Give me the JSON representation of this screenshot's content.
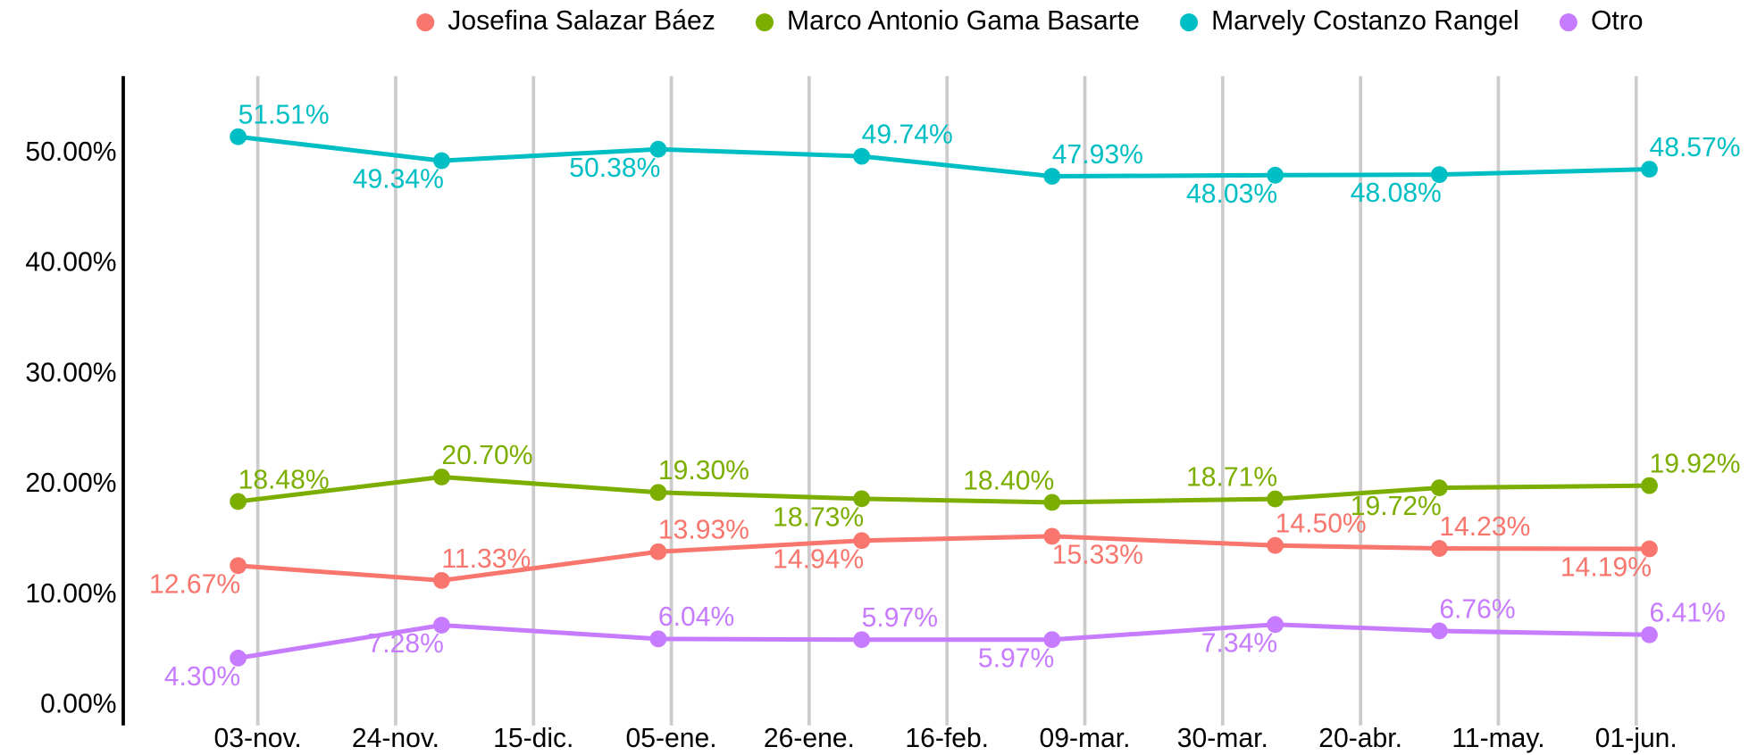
{
  "chart_data": {
    "type": "line",
    "x": [
      -3,
      28,
      61,
      92,
      121,
      155,
      180,
      212
    ],
    "xlim": [
      -20.5,
      228.4
    ],
    "xticks": [
      {
        "value": 0,
        "label": "03-nov."
      },
      {
        "value": 21,
        "label": "24-nov."
      },
      {
        "value": 42,
        "label": "15-dic."
      },
      {
        "value": 63,
        "label": "05-ene."
      },
      {
        "value": 84,
        "label": "26-ene."
      },
      {
        "value": 105,
        "label": "16-feb."
      },
      {
        "value": 126,
        "label": "09-mar."
      },
      {
        "value": 147,
        "label": "30-mar."
      },
      {
        "value": 168,
        "label": "20-abr."
      },
      {
        "value": 189,
        "label": "11-may."
      },
      {
        "value": 210,
        "label": "01-jun."
      }
    ],
    "ylim": [
      -1.8,
      57
    ],
    "yticks": [
      {
        "value": 0,
        "label": "0.00%"
      },
      {
        "value": 10,
        "label": "10.00%"
      },
      {
        "value": 20,
        "label": "20.00%"
      },
      {
        "value": 30,
        "label": "30.00%"
      },
      {
        "value": 40,
        "label": "40.00%"
      },
      {
        "value": 50,
        "label": "50.00%"
      }
    ],
    "grid": "x",
    "legend": "top",
    "series": [
      {
        "name": "Josefina Salazar Báez",
        "color": "#f8766d",
        "values": [
          12.67,
          11.33,
          13.93,
          14.94,
          15.33,
          14.5,
          14.23,
          14.19
        ],
        "value_labels": [
          "12.67%",
          "11.33%",
          "13.93%",
          "14.94%",
          "15.33%",
          "14.50%",
          "14.23%",
          "14.19%"
        ]
      },
      {
        "name": "Marco Antonio Gama Basarte",
        "color": "#7cae00",
        "values": [
          18.48,
          20.7,
          19.3,
          18.73,
          18.4,
          18.71,
          19.72,
          19.92
        ],
        "value_labels": [
          "18.48%",
          "20.70%",
          "19.30%",
          "18.73%",
          "18.40%",
          "18.71%",
          "19.72%",
          "19.92%"
        ]
      },
      {
        "name": "Marvely Costanzo Rangel",
        "color": "#00bfc4",
        "values": [
          51.51,
          49.34,
          50.38,
          49.74,
          47.93,
          48.03,
          48.08,
          48.57
        ],
        "value_labels": [
          "51.51%",
          "49.34%",
          "50.38%",
          "49.74%",
          "47.93%",
          "48.03%",
          "48.08%",
          "48.57%"
        ]
      },
      {
        "name": "Otro",
        "color": "#c77cff",
        "values": [
          4.3,
          7.28,
          6.04,
          5.97,
          5.97,
          7.34,
          6.76,
          6.41
        ],
        "value_labels": [
          "4.30%",
          "7.28%",
          "6.04%",
          "5.97%",
          "5.97%",
          "7.34%",
          "6.76%",
          "6.41%"
        ]
      }
    ]
  }
}
